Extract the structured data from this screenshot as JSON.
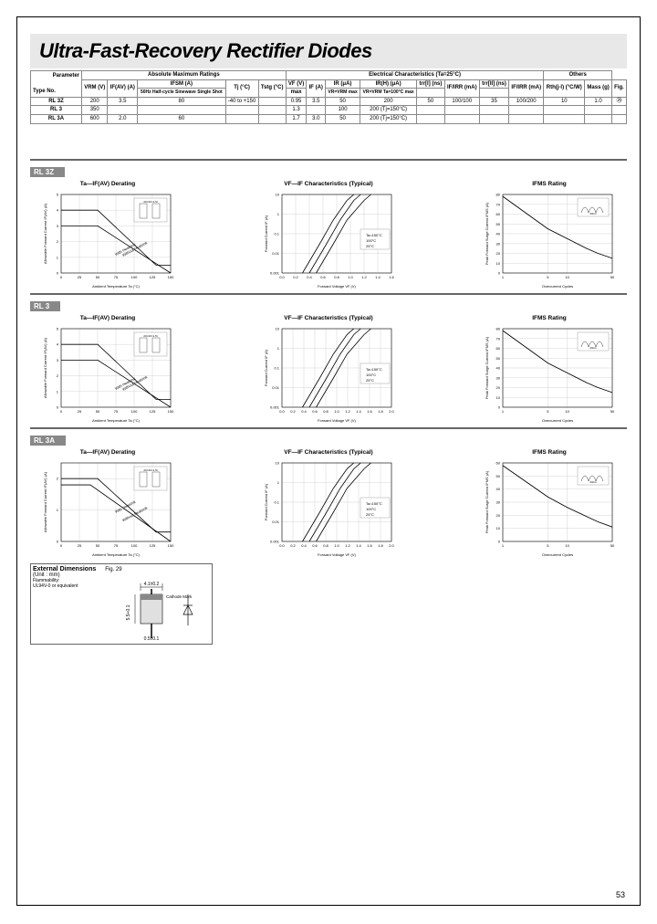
{
  "title": "Ultra-Fast-Recovery Rectifier Diodes",
  "pageNum": "53",
  "tableHeaders": {
    "abs": "Absolute Maximum Ratings",
    "elec": "Electrical Characteristics (Ta=25°C)",
    "others": "Others",
    "param": "Parameter",
    "typeNo": "Type No.",
    "vrm": "VRM (V)",
    "ifav": "IF(AV) (A)",
    "ifsm": "IFSM (A)",
    "ifsmNote": "50Hz Half-cycle Sinewave Single Shot",
    "tj": "Tj (°C)",
    "tstg": "Tstg (°C)",
    "vf": "VF (V)",
    "vfMax": "max",
    "if": "IF (A)",
    "ir": "IR (μA)",
    "irCond1": "VR=VRM max",
    "irH": "IR(H) (μA)",
    "irCond2": "VR=VRM Ta=100°C max",
    "trr1": "trr[I] (ns)",
    "trrC1": "IF/IRR (mA)",
    "trr2": "trr[II] (ns)",
    "trrC2": "IF/IRR (mA)",
    "rth": "Rth(j-l) (°C/W)",
    "mass": "Mass (g)",
    "fig": "Fig."
  },
  "rows": [
    {
      "type": "RL 3Z",
      "vrm": "200",
      "ifav": "3.5",
      "ifsm": "80",
      "tj": "-40 to +150",
      "vf": "0.95",
      "if": "3.5",
      "ir": "50",
      "irh": "200",
      "trr1": "50",
      "trrc1": "100/100",
      "trr2": "35",
      "trrc2": "100/200",
      "rth": "10",
      "mass": "1.0",
      "fig": "㉙"
    },
    {
      "type": "RL 3",
      "vrm": "350",
      "ifav": "",
      "ifsm": "",
      "tj": "",
      "vf": "1.3",
      "if": "",
      "ir": "100",
      "irh": "200 (Tj=150°C)",
      "trr1": "",
      "trrc1": "",
      "trr2": "",
      "trrc2": "",
      "rth": "",
      "mass": "",
      "fig": ""
    },
    {
      "type": "RL 3A",
      "vrm": "600",
      "ifav": "2.0",
      "ifsm": "60",
      "tj": "",
      "vf": "1.7",
      "if": "3.0",
      "ir": "50",
      "irh": "200 (Tj=150°C)",
      "trr1": "",
      "trrc1": "",
      "trr2": "",
      "trrc2": "",
      "rth": "",
      "mass": "",
      "fig": ""
    }
  ],
  "devices": [
    "RL 3Z",
    "RL 3",
    "RL 3A"
  ],
  "chartTitles": {
    "derating": "Ta—IF(AV) Derating",
    "vfif": "VF—IF Characteristics (Typical)",
    "ifms": "IFMS Rating"
  },
  "axes": {
    "derateX": "Ambient Temperature Ta (°C)",
    "derateY": "Allowable Forward Current IF(AV) (A)",
    "vfX": "Forward Voltage VF (V)",
    "vfY": "Forward Current IF (A)",
    "ifmsX": "Overcurrent Cycles",
    "ifmsY": "Peak Forward Surge Current IFMS (A)"
  },
  "derateData": {
    "xlim": [
      0,
      150
    ],
    "xticks": [
      0,
      25,
      50,
      75,
      100,
      125,
      150
    ],
    "ylim": [
      0,
      5
    ],
    "yticks": [
      0,
      1,
      2,
      3,
      4,
      5
    ],
    "line1": [
      [
        0,
        4
      ],
      [
        50,
        4
      ],
      [
        130,
        0.5
      ],
      [
        150,
        0.5
      ]
    ],
    "line2": [
      [
        0,
        3
      ],
      [
        50,
        3
      ],
      [
        150,
        0
      ]
    ],
    "labels": [
      "With Heatsink",
      "Without Heatsink"
    ]
  },
  "derateDataA": {
    "xlim": [
      0,
      150
    ],
    "ylim": [
      0,
      2.5
    ],
    "line1": [
      [
        0,
        2
      ],
      [
        50,
        2
      ],
      [
        130,
        0.3
      ],
      [
        150,
        0.3
      ]
    ],
    "line2": [
      [
        0,
        1.8
      ],
      [
        40,
        1.8
      ],
      [
        150,
        0
      ]
    ]
  },
  "vfData": {
    "xlim": [
      0,
      1.6
    ],
    "xticks": [
      0,
      0.2,
      0.4,
      0.6,
      0.8,
      1.0,
      1.2,
      1.4,
      1.6
    ],
    "ylog": [
      0.001,
      10
    ],
    "curves": [
      [
        [
          0.3,
          0.001
        ],
        [
          0.55,
          0.03
        ],
        [
          0.75,
          0.5
        ],
        [
          0.95,
          5
        ],
        [
          1.05,
          10
        ]
      ],
      [
        [
          0.4,
          0.001
        ],
        [
          0.65,
          0.03
        ],
        [
          0.85,
          0.5
        ],
        [
          1.05,
          5
        ],
        [
          1.15,
          10
        ]
      ],
      [
        [
          0.5,
          0.001
        ],
        [
          0.75,
          0.03
        ],
        [
          0.95,
          0.5
        ],
        [
          1.2,
          5
        ],
        [
          1.3,
          10
        ]
      ]
    ],
    "tempLabels": [
      "Ta=150°C",
      "100°C",
      "25°C"
    ]
  },
  "vfData3": {
    "xlim": [
      0,
      2.0
    ]
  },
  "ifmsData": {
    "xlim": [
      1,
      50
    ],
    "xticks": [
      1,
      10,
      50
    ],
    "ylim": [
      0,
      80
    ],
    "yticks": [
      0,
      10,
      20,
      30,
      40,
      50,
      60,
      70,
      80
    ],
    "curve": [
      [
        1,
        78
      ],
      [
        5,
        45
      ],
      [
        10,
        35
      ],
      [
        20,
        25
      ],
      [
        30,
        20
      ],
      [
        50,
        15
      ]
    ]
  },
  "ifmsDataA": {
    "ylim": [
      0,
      60
    ],
    "curve": [
      [
        1,
        58
      ],
      [
        5,
        34
      ],
      [
        10,
        26
      ],
      [
        20,
        19
      ],
      [
        30,
        15
      ],
      [
        50,
        11
      ]
    ]
  },
  "extDim": {
    "title": "External Dimensions",
    "unit": "(Unit : mm)",
    "fig": "Fig. 29",
    "flam": "Flammability:",
    "flamStd": "UL94V-0 or equivalent",
    "cathode": "Cathode Mark",
    "dims": {
      "w": "4.1±0.2",
      "h": "5.5+0.1",
      "lead": "0.5±0.1"
    }
  },
  "colors": {
    "grid": "#999",
    "axis": "#000",
    "line": "#000",
    "bgGrid": "#ccc"
  }
}
